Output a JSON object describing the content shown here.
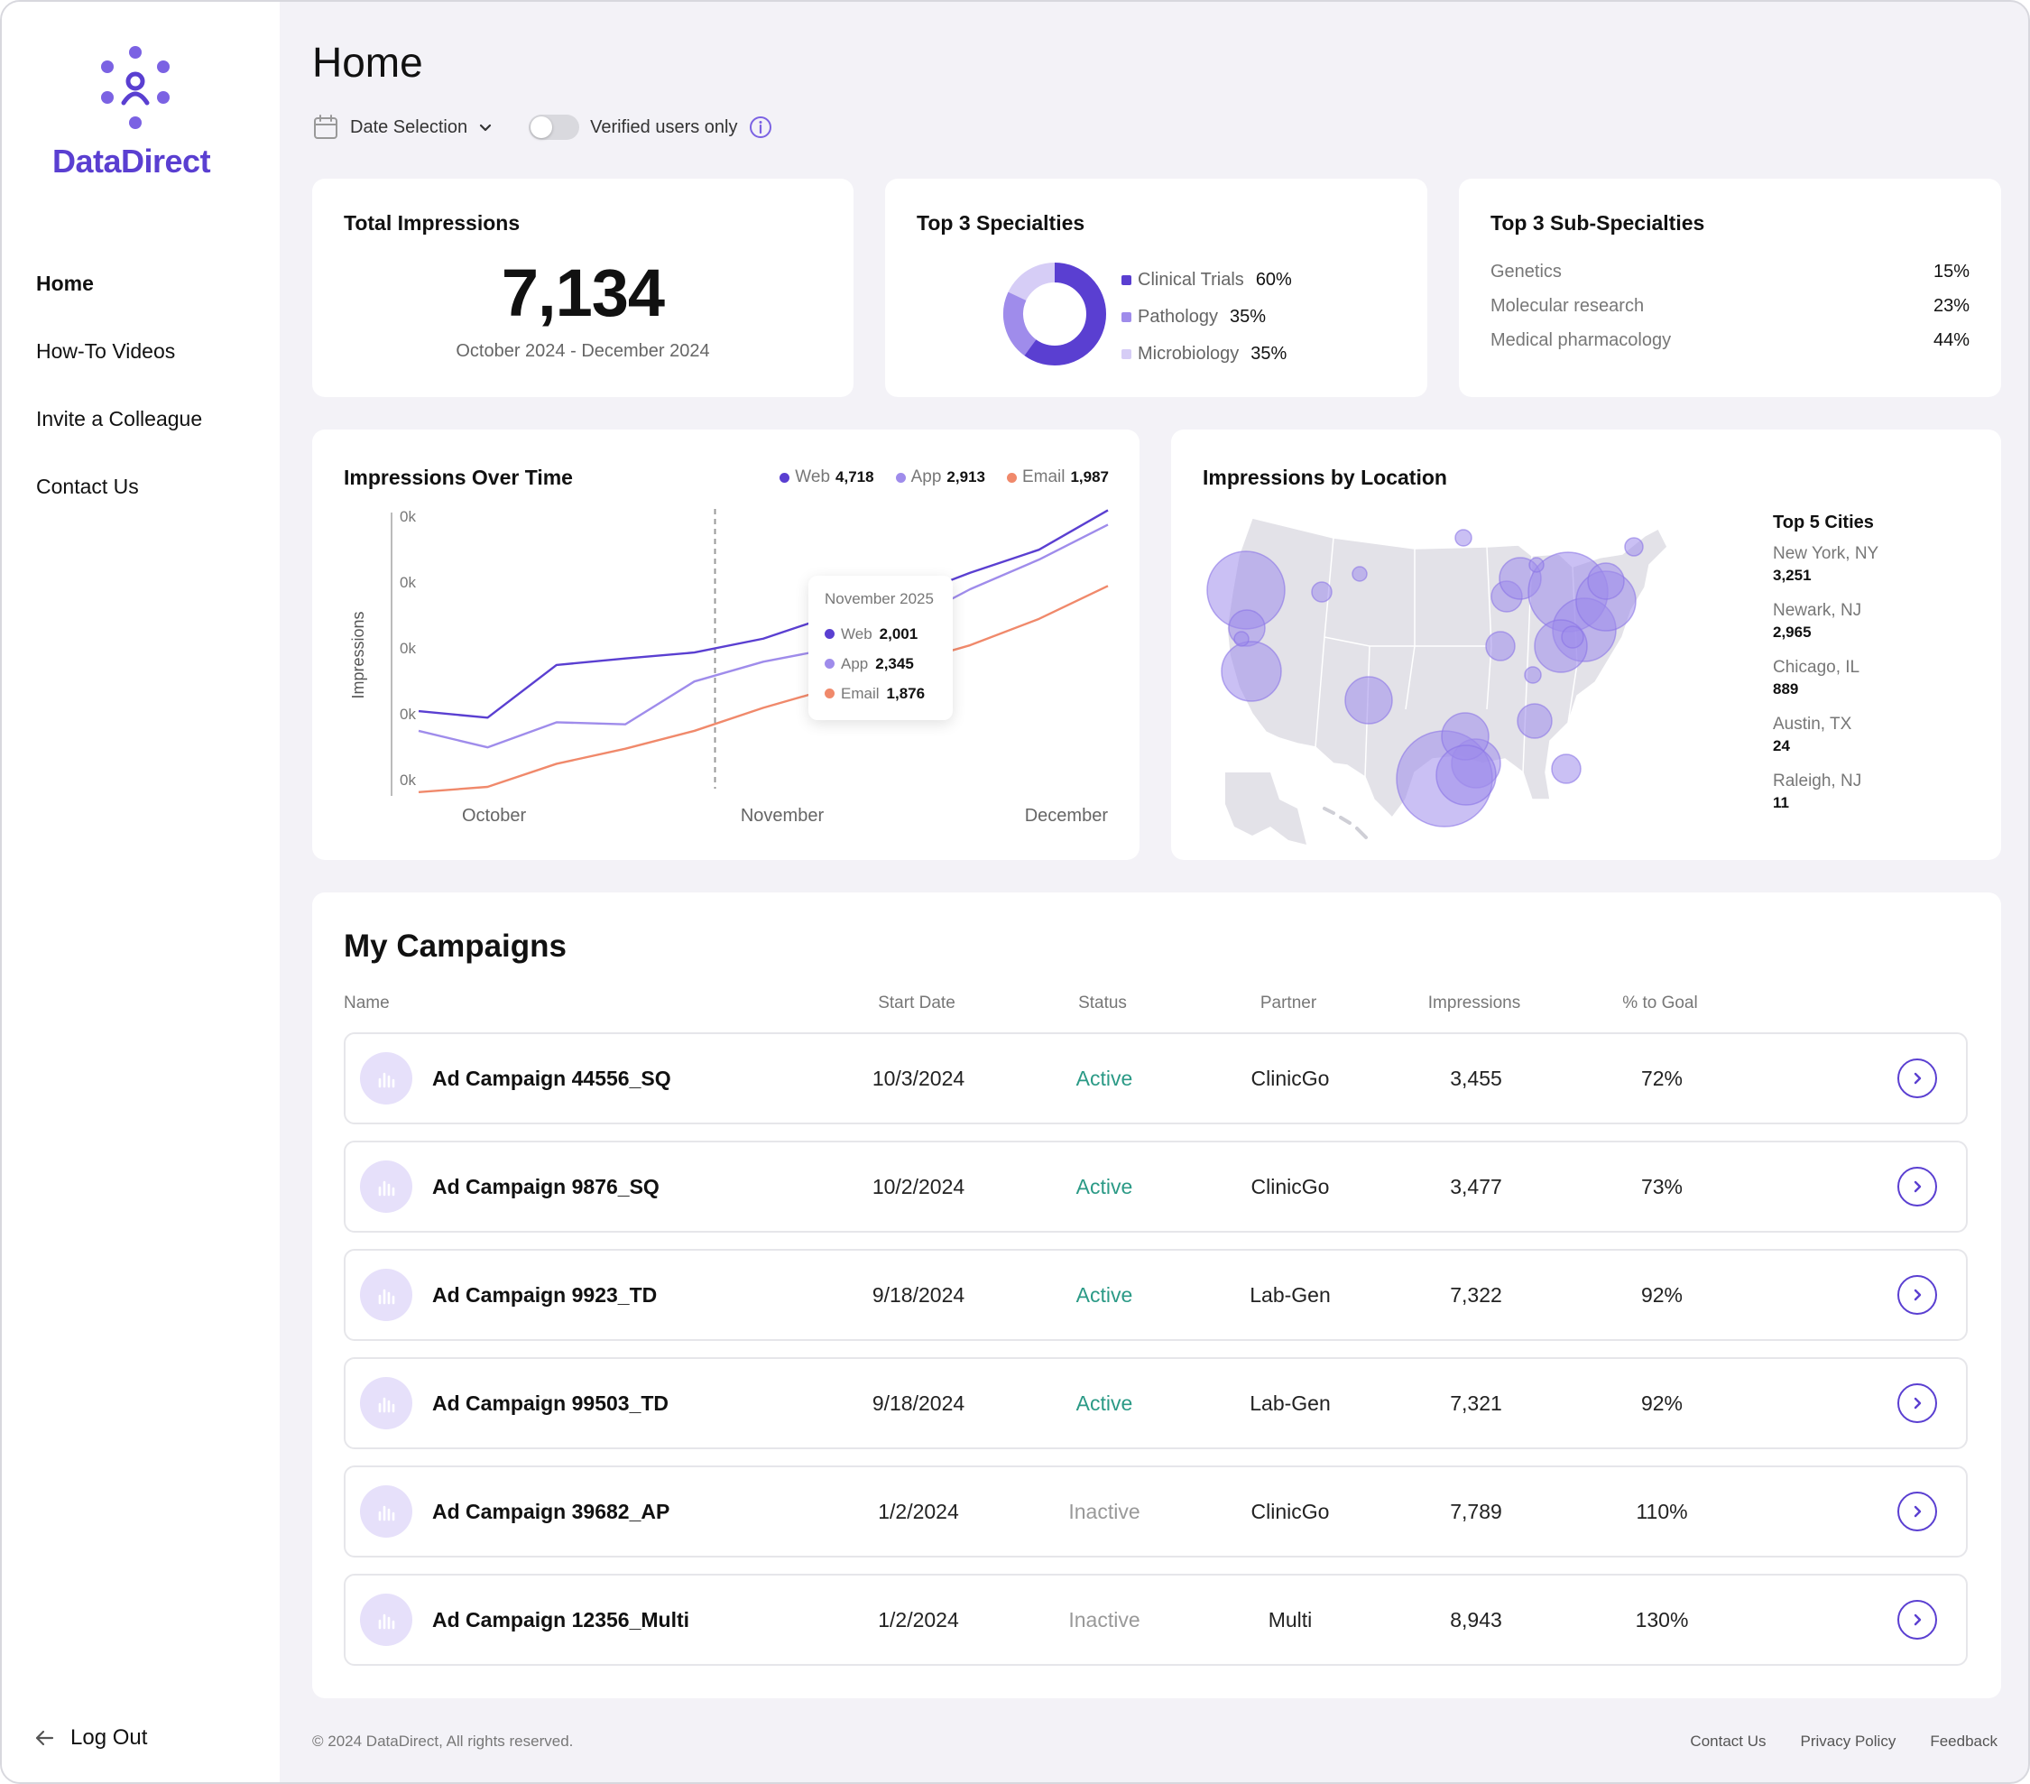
{
  "app": {
    "logo_text": "DataDirect"
  },
  "sidebar": {
    "items": [
      {
        "label": "Home",
        "active": true
      },
      {
        "label": "How-To Videos"
      },
      {
        "label": "Invite a Colleague"
      },
      {
        "label": "Contact Us"
      }
    ],
    "logout_label": "Log Out"
  },
  "header": {
    "title": "Home",
    "date_selection_label": "Date Selection",
    "verified_toggle_label": "Verified users only",
    "verified_toggle_on": false
  },
  "kpis": {
    "total": {
      "title": "Total Impressions",
      "value": "7,134",
      "range": "October 2024 - December 2024"
    },
    "specialties": {
      "title": "Top 3 Specialties",
      "items": [
        {
          "label": "Clinical Trials",
          "value": "60%",
          "color": "#5a3fd1"
        },
        {
          "label": "Pathology",
          "value": "35%",
          "color": "#9f8ceb"
        },
        {
          "label": "Microbiology",
          "value": "35%",
          "color": "#d6cdf6"
        }
      ]
    },
    "subspecialties": {
      "title": "Top 3 Sub-Specialties",
      "items": [
        {
          "label": "Genetics",
          "value": "15%"
        },
        {
          "label": "Molecular research",
          "value": "23%"
        },
        {
          "label": "Medical pharmacology",
          "value": "44%"
        }
      ]
    }
  },
  "impressions_over_time": {
    "title": "Impressions Over Time",
    "legend": [
      {
        "label": "Web",
        "value": "4,718",
        "color": "#5a3fd1"
      },
      {
        "label": "App",
        "value": "2,913",
        "color": "#9f8ceb"
      },
      {
        "label": "Email",
        "value": "1,987",
        "color": "#f0896b"
      }
    ],
    "tooltip": {
      "title": "November 2025",
      "rows": [
        {
          "label": "Web",
          "value": "2,001",
          "color": "#5a3fd1"
        },
        {
          "label": "App",
          "value": "2,345",
          "color": "#9f8ceb"
        },
        {
          "label": "Email",
          "value": "1,876",
          "color": "#f0896b"
        }
      ]
    }
  },
  "chart_data": {
    "type": "line",
    "ylabel": "Impressions",
    "y_ticks": [
      "0k",
      "0k",
      "0k",
      "0k",
      "0k"
    ],
    "x_ticks": [
      "October",
      "November",
      "December"
    ],
    "x": [
      0,
      1,
      2,
      3,
      4,
      5,
      6,
      7,
      8,
      9,
      10
    ],
    "series": [
      {
        "name": "Web",
        "color": "#5a3fd1",
        "values": [
          1.15,
          1.05,
          1.85,
          1.95,
          2.04,
          2.25,
          2.6,
          2.85,
          3.25,
          3.6,
          4.2
        ]
      },
      {
        "name": "App",
        "color": "#9f8ceb",
        "values": [
          0.85,
          0.6,
          0.98,
          0.95,
          1.6,
          1.9,
          2.1,
          2.45,
          3.0,
          3.45,
          3.98
        ]
      },
      {
        "name": "Email",
        "color": "#f0896b",
        "values": [
          -0.08,
          0.0,
          0.35,
          0.58,
          0.85,
          1.2,
          1.5,
          1.85,
          2.15,
          2.55,
          3.05
        ]
      }
    ],
    "highlight_x": 4.3,
    "ylim": [
      0,
      4
    ]
  },
  "location": {
    "title": "Impressions by Location",
    "cities_title": "Top 5 Cities",
    "cities": [
      {
        "name": "New York, NY",
        "value": "3,251"
      },
      {
        "name": "Newark, NJ",
        "value": "2,965"
      },
      {
        "name": "Chicago, IL",
        "value": "889"
      },
      {
        "name": "Austin, TX",
        "value": "24"
      },
      {
        "name": "Raleigh, NJ",
        "value": "11"
      }
    ]
  },
  "campaigns": {
    "title": "My Campaigns",
    "headers": [
      "Name",
      "Start Date",
      "Status",
      "Partner",
      "Impressions",
      "% to Goal"
    ],
    "rows": [
      {
        "name": "Ad Campaign 44556_SQ",
        "start": "10/3/2024",
        "status": "Active",
        "partner": "ClinicGo",
        "impressions": "3,455",
        "goal": "72%"
      },
      {
        "name": "Ad Campaign 9876_SQ",
        "start": "10/2/2024",
        "status": "Active",
        "partner": "ClinicGo",
        "impressions": "3,477",
        "goal": "73%"
      },
      {
        "name": "Ad Campaign 9923_TD",
        "start": "9/18/2024",
        "status": "Active",
        "partner": "Lab-Gen",
        "impressions": "7,322",
        "goal": "92%"
      },
      {
        "name": "Ad Campaign 99503_TD",
        "start": "9/18/2024",
        "status": "Active",
        "partner": "Lab-Gen",
        "impressions": "7,321",
        "goal": "92%"
      },
      {
        "name": "Ad Campaign 39682_AP",
        "start": "1/2/2024",
        "status": "Inactive",
        "partner": "ClinicGo",
        "impressions": "7,789",
        "goal": "110%"
      },
      {
        "name": "Ad Campaign 12356_Multi",
        "start": "1/2/2024",
        "status": "Inactive",
        "partner": "Multi",
        "impressions": "8,943",
        "goal": "130%"
      }
    ]
  },
  "footer": {
    "copyright": "© 2024 DataDirect, All rights reserved.",
    "links": [
      "Contact Us",
      "Privacy Policy",
      "Feedback"
    ]
  },
  "colors": {
    "brand": "#5a3fd1",
    "active_status": "#2b9a86",
    "background": "#f3f2f7"
  }
}
